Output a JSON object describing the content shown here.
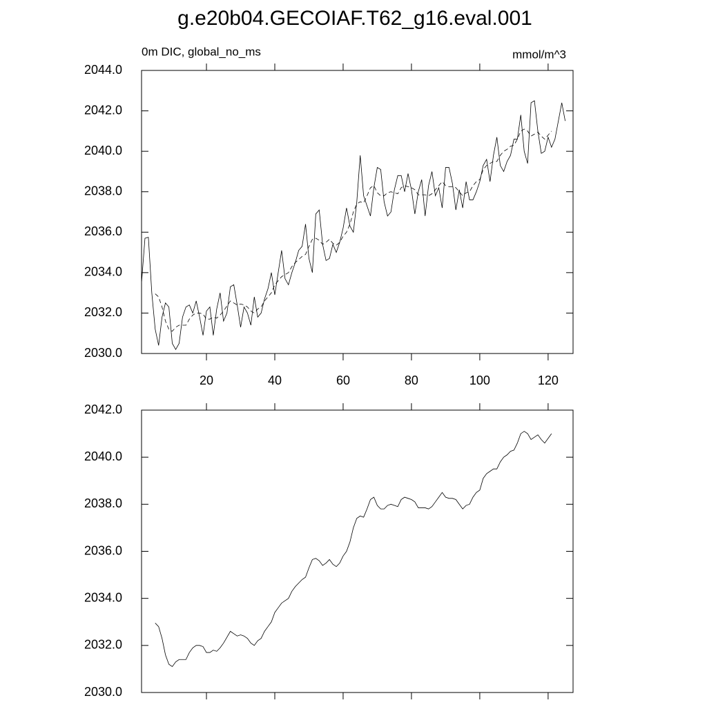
{
  "chart_data": [
    {
      "type": "line",
      "title": "g.e20b04.GECOIAF.T62_g16.eval.001",
      "subtitle_left": "0m DIC, global_no_ms",
      "subtitle_right": "mmol/m^3",
      "xlim": [
        1,
        127.3
      ],
      "ylim": [
        2030,
        2044
      ],
      "xticks": [
        20,
        40,
        60,
        80,
        100,
        120
      ],
      "yticks": [
        {
          "value": 2030,
          "label": "2030.0"
        },
        {
          "value": 2032,
          "label": "2032.0"
        },
        {
          "value": 2034,
          "label": "2034.0"
        },
        {
          "value": 2036,
          "label": "2036.0"
        },
        {
          "value": 2038,
          "label": "2038.0"
        },
        {
          "value": 2040,
          "label": "2040.0"
        },
        {
          "value": 2042,
          "label": "2042.0"
        },
        {
          "value": 2044,
          "label": "2044.0"
        }
      ],
      "series": [
        {
          "color": "#000000",
          "dash": false,
          "x": [
            1,
            2,
            3,
            4,
            5,
            6,
            7,
            8,
            9,
            10,
            11,
            12,
            13,
            14,
            15,
            16,
            17,
            18,
            19,
            20,
            21,
            22,
            23,
            24,
            25,
            26,
            27,
            28,
            29,
            30,
            31,
            32,
            33,
            34,
            35,
            36,
            37,
            38,
            39,
            40,
            41,
            42,
            43,
            44,
            45,
            46,
            47,
            48,
            49,
            50,
            51,
            52,
            53,
            54,
            55,
            56,
            57,
            58,
            59,
            60,
            61,
            62,
            63,
            64,
            65,
            66,
            67,
            68,
            69,
            70,
            71,
            72,
            73,
            74,
            75,
            76,
            77,
            78,
            79,
            80,
            81,
            82,
            83,
            84,
            85,
            86,
            87,
            88,
            89,
            90,
            91,
            92,
            93,
            94,
            95,
            96,
            97,
            98,
            99,
            100,
            101,
            102,
            103,
            104,
            105,
            106,
            107,
            108,
            109,
            110,
            111,
            112,
            113,
            114,
            115,
            116,
            117,
            118,
            119,
            120,
            121,
            122,
            123,
            124,
            125
          ],
          "values": [
            2033.5,
            2035.7,
            2035.75,
            2033.0,
            2031.2,
            2030.4,
            2031.8,
            2032.5,
            2032.3,
            2030.5,
            2030.2,
            2030.5,
            2031.8,
            2032.3,
            2032.4,
            2032.0,
            2032.6,
            2031.8,
            2030.9,
            2032.1,
            2032.3,
            2030.9,
            2032.2,
            2033.0,
            2031.6,
            2032.0,
            2033.3,
            2033.4,
            2032.4,
            2031.3,
            2032.3,
            2032.0,
            2031.4,
            2032.8,
            2031.8,
            2032.0,
            2032.7,
            2033.2,
            2034.0,
            2032.9,
            2034.0,
            2035.1,
            2033.7,
            2033.4,
            2034.0,
            2034.5,
            2035.1,
            2035.3,
            2036.4,
            2034.7,
            2034.0,
            2036.9,
            2037.1,
            2035.4,
            2034.6,
            2034.7,
            2035.4,
            2035.0,
            2035.5,
            2036.2,
            2037.2,
            2036.3,
            2036.0,
            2037.5,
            2039.8,
            2037.8,
            2037.3,
            2036.8,
            2038.2,
            2039.2,
            2039.1,
            2037.5,
            2036.8,
            2037.0,
            2038.1,
            2038.8,
            2038.8,
            2038.0,
            2038.9,
            2038.1,
            2036.9,
            2038.0,
            2038.6,
            2036.8,
            2038.3,
            2039.0,
            2037.8,
            2038.2,
            2037.2,
            2039.2,
            2039.2,
            2038.4,
            2037.1,
            2038.1,
            2037.2,
            2038.5,
            2037.6,
            2037.6,
            2038.0,
            2038.5,
            2039.3,
            2039.6,
            2038.5,
            2039.8,
            2040.7,
            2039.3,
            2039.0,
            2039.5,
            2039.8,
            2040.6,
            2040.6,
            2041.8,
            2040.0,
            2039.4,
            2042.4,
            2042.5,
            2041.0,
            2039.9,
            2040.0,
            2040.7,
            2040.2,
            2040.6,
            2041.5,
            2042.4,
            2041.5
          ]
        },
        {
          "color": "#000000",
          "dash": true,
          "x": [
            5,
            6,
            7,
            8,
            9,
            10,
            11,
            12,
            13,
            14,
            15,
            16,
            17,
            18,
            19,
            20,
            21,
            22,
            23,
            24,
            25,
            26,
            27,
            28,
            29,
            30,
            31,
            32,
            33,
            34,
            35,
            36,
            37,
            38,
            39,
            40,
            41,
            42,
            43,
            44,
            45,
            46,
            47,
            48,
            49,
            50,
            51,
            52,
            53,
            54,
            55,
            56,
            57,
            58,
            59,
            60,
            61,
            62,
            63,
            64,
            65,
            66,
            67,
            68,
            69,
            70,
            71,
            72,
            73,
            74,
            75,
            76,
            77,
            78,
            79,
            80,
            81,
            82,
            83,
            84,
            85,
            86,
            87,
            88,
            89,
            90,
            91,
            92,
            93,
            94,
            95,
            96,
            97,
            98,
            99,
            100,
            101,
            102,
            103,
            104,
            105,
            106,
            107,
            108,
            109,
            110,
            111,
            112,
            113,
            114,
            115,
            116,
            117,
            118,
            119,
            120,
            121
          ],
          "values": [
            2032.95,
            2032.8,
            2032.3,
            2031.6,
            2031.2,
            2031.1,
            2031.3,
            2031.4,
            2031.4,
            2031.4,
            2031.7,
            2031.9,
            2032.0,
            2032.0,
            2031.95,
            2031.7,
            2031.7,
            2031.8,
            2031.75,
            2031.9,
            2032.1,
            2032.35,
            2032.6,
            2032.5,
            2032.4,
            2032.45,
            2032.4,
            2032.3,
            2032.1,
            2032.0,
            2032.2,
            2032.3,
            2032.6,
            2032.8,
            2033.0,
            2033.4,
            2033.6,
            2033.8,
            2033.9,
            2034.0,
            2034.3,
            2034.5,
            2034.65,
            2034.8,
            2034.9,
            2035.3,
            2035.65,
            2035.7,
            2035.6,
            2035.4,
            2035.5,
            2035.65,
            2035.45,
            2035.35,
            2035.5,
            2035.8,
            2036.0,
            2036.4,
            2037.0,
            2037.4,
            2037.5,
            2037.45,
            2037.8,
            2038.2,
            2038.3,
            2037.95,
            2037.8,
            2037.8,
            2037.95,
            2038.0,
            2037.95,
            2037.9,
            2038.2,
            2038.3,
            2038.25,
            2038.2,
            2038.1,
            2037.85,
            2037.85,
            2037.85,
            2037.8,
            2037.9,
            2038.1,
            2038.3,
            2038.5,
            2038.3,
            2038.25,
            2038.25,
            2038.2,
            2038.0,
            2037.8,
            2037.95,
            2038.0,
            2038.3,
            2038.5,
            2038.6,
            2039.1,
            2039.3,
            2039.4,
            2039.5,
            2039.5,
            2039.8,
            2040.0,
            2040.1,
            2040.25,
            2040.3,
            2040.6,
            2041.0,
            2041.1,
            2041.0,
            2040.75,
            2040.85,
            2040.95,
            2040.75,
            2040.6,
            2040.8,
            2041.0
          ]
        }
      ]
    },
    {
      "type": "line",
      "xlim": [
        1,
        127.3
      ],
      "ylim": [
        2030,
        2042
      ],
      "xticks": [
        20,
        40,
        60,
        80,
        100,
        120
      ],
      "xtick_labels": false,
      "yticks": [
        {
          "value": 2030,
          "label": "2030.0"
        },
        {
          "value": 2032,
          "label": "2032.0"
        },
        {
          "value": 2034,
          "label": "2034.0"
        },
        {
          "value": 2036,
          "label": "2036.0"
        },
        {
          "value": 2038,
          "label": "2038.0"
        },
        {
          "value": 2040,
          "label": "2040.0"
        },
        {
          "value": 2042,
          "label": "2042.0"
        }
      ],
      "series": [
        {
          "color": "#000000",
          "dash": false,
          "x": [
            5,
            6,
            7,
            8,
            9,
            10,
            11,
            12,
            13,
            14,
            15,
            16,
            17,
            18,
            19,
            20,
            21,
            22,
            23,
            24,
            25,
            26,
            27,
            28,
            29,
            30,
            31,
            32,
            33,
            34,
            35,
            36,
            37,
            38,
            39,
            40,
            41,
            42,
            43,
            44,
            45,
            46,
            47,
            48,
            49,
            50,
            51,
            52,
            53,
            54,
            55,
            56,
            57,
            58,
            59,
            60,
            61,
            62,
            63,
            64,
            65,
            66,
            67,
            68,
            69,
            70,
            71,
            72,
            73,
            74,
            75,
            76,
            77,
            78,
            79,
            80,
            81,
            82,
            83,
            84,
            85,
            86,
            87,
            88,
            89,
            90,
            91,
            92,
            93,
            94,
            95,
            96,
            97,
            98,
            99,
            100,
            101,
            102,
            103,
            104,
            105,
            106,
            107,
            108,
            109,
            110,
            111,
            112,
            113,
            114,
            115,
            116,
            117,
            118,
            119,
            120,
            121
          ],
          "values": [
            2032.95,
            2032.8,
            2032.3,
            2031.6,
            2031.2,
            2031.1,
            2031.3,
            2031.4,
            2031.4,
            2031.4,
            2031.7,
            2031.9,
            2032.0,
            2032.0,
            2031.95,
            2031.7,
            2031.7,
            2031.8,
            2031.75,
            2031.9,
            2032.1,
            2032.35,
            2032.6,
            2032.5,
            2032.4,
            2032.45,
            2032.4,
            2032.3,
            2032.1,
            2032.0,
            2032.2,
            2032.3,
            2032.6,
            2032.8,
            2033.0,
            2033.4,
            2033.6,
            2033.8,
            2033.9,
            2034.0,
            2034.3,
            2034.5,
            2034.65,
            2034.8,
            2034.9,
            2035.3,
            2035.65,
            2035.7,
            2035.6,
            2035.4,
            2035.5,
            2035.65,
            2035.45,
            2035.35,
            2035.5,
            2035.8,
            2036.0,
            2036.4,
            2037.0,
            2037.4,
            2037.5,
            2037.45,
            2037.8,
            2038.2,
            2038.3,
            2037.95,
            2037.8,
            2037.8,
            2037.95,
            2038.0,
            2037.95,
            2037.9,
            2038.2,
            2038.3,
            2038.25,
            2038.2,
            2038.1,
            2037.85,
            2037.85,
            2037.85,
            2037.8,
            2037.9,
            2038.1,
            2038.3,
            2038.5,
            2038.3,
            2038.25,
            2038.25,
            2038.2,
            2038.0,
            2037.8,
            2037.95,
            2038.0,
            2038.3,
            2038.5,
            2038.6,
            2039.1,
            2039.3,
            2039.4,
            2039.5,
            2039.5,
            2039.8,
            2040.0,
            2040.1,
            2040.25,
            2040.3,
            2040.6,
            2041.0,
            2041.1,
            2041.0,
            2040.75,
            2040.85,
            2040.95,
            2040.75,
            2040.6,
            2040.8,
            2041.0
          ]
        }
      ]
    }
  ]
}
